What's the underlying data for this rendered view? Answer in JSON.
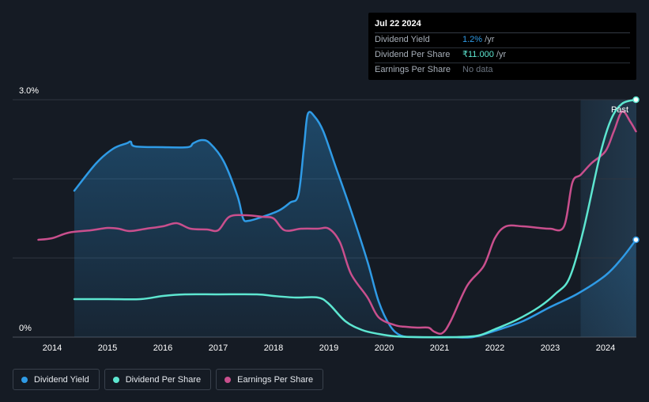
{
  "tooltip": {
    "date": "Jul 22 2024",
    "rows": [
      {
        "label": "Dividend Yield",
        "value": "1.2%",
        "suffix": " /yr",
        "color": "#2f9be6"
      },
      {
        "label": "Dividend Per Share",
        "value": "₹11.000",
        "suffix": " /yr",
        "color": "#5de6d0"
      },
      {
        "label": "Earnings Per Share",
        "value": "No data",
        "suffix": "",
        "color": "#6b7480"
      }
    ]
  },
  "legend": [
    {
      "label": "Dividend Yield",
      "color": "#2f9be6"
    },
    {
      "label": "Dividend Per Share",
      "color": "#5de6d0"
    },
    {
      "label": "Earnings Per Share",
      "color": "#c94f8d"
    }
  ],
  "chart_data": {
    "type": "line",
    "xlabel": "",
    "ylabel": "",
    "xlim": [
      2013.7,
      2024.55
    ],
    "ylim": [
      0,
      3.0
    ],
    "y_tick_labels": [
      "0%",
      "3.0%"
    ],
    "x_ticks": [
      2014,
      2015,
      2016,
      2017,
      2018,
      2019,
      2020,
      2021,
      2022,
      2023,
      2024
    ],
    "x_tick_labels": [
      "2014",
      "2015",
      "2016",
      "2017",
      "2018",
      "2019",
      "2020",
      "2021",
      "2022",
      "2023",
      "2024"
    ],
    "past_region_start": 2023.55,
    "past_label": "Past",
    "series": [
      {
        "name": "Dividend Yield",
        "color": "#2f9be6",
        "fill": true,
        "points": [
          [
            2014.4,
            1.85
          ],
          [
            2014.8,
            2.2
          ],
          [
            2015.1,
            2.38
          ],
          [
            2015.35,
            2.45
          ],
          [
            2015.42,
            2.47
          ],
          [
            2015.5,
            2.41
          ],
          [
            2016.0,
            2.4
          ],
          [
            2016.45,
            2.4
          ],
          [
            2016.55,
            2.45
          ],
          [
            2016.7,
            2.49
          ],
          [
            2016.85,
            2.45
          ],
          [
            2017.1,
            2.22
          ],
          [
            2017.35,
            1.78
          ],
          [
            2017.45,
            1.5
          ],
          [
            2017.55,
            1.47
          ],
          [
            2017.8,
            1.52
          ],
          [
            2018.1,
            1.6
          ],
          [
            2018.3,
            1.7
          ],
          [
            2018.45,
            1.8
          ],
          [
            2018.55,
            2.4
          ],
          [
            2018.62,
            2.82
          ],
          [
            2018.75,
            2.78
          ],
          [
            2018.9,
            2.6
          ],
          [
            2019.1,
            2.2
          ],
          [
            2019.4,
            1.6
          ],
          [
            2019.7,
            0.95
          ],
          [
            2019.9,
            0.45
          ],
          [
            2020.1,
            0.15
          ],
          [
            2020.3,
            0.02
          ],
          [
            2020.6,
            0.0
          ],
          [
            2021.2,
            0.0
          ],
          [
            2021.6,
            0.0
          ],
          [
            2022.0,
            0.08
          ],
          [
            2022.5,
            0.2
          ],
          [
            2023.0,
            0.38
          ],
          [
            2023.5,
            0.55
          ],
          [
            2024.0,
            0.78
          ],
          [
            2024.3,
            1.0
          ],
          [
            2024.55,
            1.23
          ]
        ]
      },
      {
        "name": "Dividend Per Share",
        "color": "#5de6d0",
        "fill": false,
        "points": [
          [
            2014.4,
            0.48
          ],
          [
            2015.0,
            0.48
          ],
          [
            2015.6,
            0.48
          ],
          [
            2016.0,
            0.52
          ],
          [
            2016.4,
            0.54
          ],
          [
            2017.0,
            0.54
          ],
          [
            2017.7,
            0.54
          ],
          [
            2018.0,
            0.52
          ],
          [
            2018.4,
            0.5
          ],
          [
            2018.8,
            0.5
          ],
          [
            2019.0,
            0.42
          ],
          [
            2019.3,
            0.2
          ],
          [
            2019.6,
            0.09
          ],
          [
            2019.9,
            0.04
          ],
          [
            2020.2,
            0.01
          ],
          [
            2020.6,
            0.0
          ],
          [
            2021.3,
            0.0
          ],
          [
            2021.7,
            0.02
          ],
          [
            2022.0,
            0.1
          ],
          [
            2022.4,
            0.22
          ],
          [
            2022.8,
            0.38
          ],
          [
            2023.1,
            0.55
          ],
          [
            2023.35,
            0.75
          ],
          [
            2023.6,
            1.35
          ],
          [
            2023.9,
            2.3
          ],
          [
            2024.1,
            2.75
          ],
          [
            2024.3,
            2.95
          ],
          [
            2024.55,
            3.0
          ]
        ]
      },
      {
        "name": "Earnings Per Share",
        "color": "#c94f8d",
        "fill": false,
        "points": [
          [
            2013.75,
            1.23
          ],
          [
            2014.0,
            1.25
          ],
          [
            2014.3,
            1.32
          ],
          [
            2014.7,
            1.35
          ],
          [
            2015.0,
            1.38
          ],
          [
            2015.2,
            1.37
          ],
          [
            2015.4,
            1.34
          ],
          [
            2015.7,
            1.37
          ],
          [
            2016.0,
            1.4
          ],
          [
            2016.25,
            1.44
          ],
          [
            2016.5,
            1.37
          ],
          [
            2016.8,
            1.36
          ],
          [
            2017.0,
            1.35
          ],
          [
            2017.2,
            1.52
          ],
          [
            2017.5,
            1.54
          ],
          [
            2017.8,
            1.52
          ],
          [
            2018.0,
            1.5
          ],
          [
            2018.2,
            1.35
          ],
          [
            2018.5,
            1.37
          ],
          [
            2018.8,
            1.37
          ],
          [
            2019.0,
            1.37
          ],
          [
            2019.2,
            1.2
          ],
          [
            2019.4,
            0.8
          ],
          [
            2019.7,
            0.5
          ],
          [
            2019.9,
            0.25
          ],
          [
            2020.2,
            0.15
          ],
          [
            2020.4,
            0.13
          ],
          [
            2020.6,
            0.12
          ],
          [
            2020.8,
            0.12
          ],
          [
            2020.9,
            0.07
          ],
          [
            2021.05,
            0.05
          ],
          [
            2021.2,
            0.2
          ],
          [
            2021.5,
            0.65
          ],
          [
            2021.8,
            0.9
          ],
          [
            2022.0,
            1.25
          ],
          [
            2022.2,
            1.4
          ],
          [
            2022.5,
            1.4
          ],
          [
            2022.8,
            1.38
          ],
          [
            2023.0,
            1.37
          ],
          [
            2023.25,
            1.4
          ],
          [
            2023.4,
            1.95
          ],
          [
            2023.55,
            2.05
          ],
          [
            2023.75,
            2.2
          ],
          [
            2024.0,
            2.35
          ],
          [
            2024.15,
            2.6
          ],
          [
            2024.3,
            2.85
          ],
          [
            2024.45,
            2.72
          ],
          [
            2024.55,
            2.6
          ]
        ]
      }
    ]
  }
}
